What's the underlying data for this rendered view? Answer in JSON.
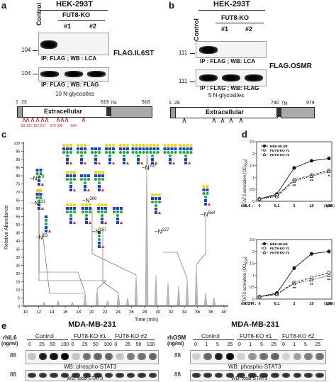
{
  "panel_a": {
    "label": "a",
    "cell_line": "HEK-293T",
    "control": "Control",
    "ko_group": "FUT8-KO",
    "ko1": "#1",
    "ko2": "#2",
    "mw_top": "104",
    "mw_bottom": "104",
    "ip_top": "IP: FLAG ; WB : LCA",
    "ip_bottom": "IP: FLAG ; WB: FLAG",
    "construct": "FLAG.IL6ST",
    "glyco_title": "10 N-glycosites",
    "domain": "Extracellular",
    "pos_start": "1",
    "pos_sp": "23",
    "pos_tm": "619",
    "tm": "TM",
    "pos_end": "918",
    "sites": [
      "83",
      "131",
      "157",
      "227",
      "379",
      "390",
      "564"
    ]
  },
  "panel_b": {
    "label": "b",
    "cell_line": "HEK-293T",
    "control": "Control",
    "ko_group": "FUT8-KO",
    "ko1": "#1",
    "ko2": "#2",
    "mw_top": "111",
    "mw_bottom": "111",
    "ip_top": "IP : FLAG ; WB: LCA",
    "ip_bottom": "IP : FLAG ; WB: FLAG",
    "construct": "FLAG.OSMR",
    "glyco_title": "5 N-glycosites",
    "domain": "Extracellular",
    "pos_start": "1",
    "pos_sp": "28",
    "pos_tm": "740",
    "tm": "TM",
    "pos_end": "979"
  },
  "panel_c": {
    "label": "c",
    "ylabel": "Relative Abundance",
    "xlabel": "Time (min)",
    "y_ticks": [
      "0",
      "5",
      "10",
      "15",
      "20",
      "25",
      "30",
      "35",
      "40",
      "45",
      "50",
      "55",
      "60",
      "65",
      "70",
      "75",
      "80",
      "85",
      "90",
      "95",
      "100"
    ],
    "x_ticks": [
      "10",
      "12",
      "14",
      "16",
      "18",
      "20",
      "22",
      "24",
      "26",
      "28",
      "30",
      "32",
      "34",
      "36",
      "38",
      "40"
    ],
    "glyco_labels": [
      "~N",
      "379",
      "~N",
      "131",
      "~N",
      "83",
      "~N",
      "390",
      "~N",
      "157",
      "~N",
      "227",
      "~N",
      "227",
      "~N",
      "564"
    ]
  },
  "panel_d": {
    "label": "d",
    "ylabel": "STAT3 activation (OD",
    "ylabel_sub": "650",
    "ylabel_end": ")",
    "legend": [
      "HEK-BLUE",
      "FUT8-KO #1",
      "FUT8-KO #2"
    ],
    "top_xlabel": "rhIL6 :",
    "bottom_xlabel": "rhOSM :",
    "x_ticks": [
      "0",
      "0.1",
      "1",
      "10",
      "100"
    ],
    "unit": "(ng/ml)",
    "y_ticks": [
      "0",
      "0.5",
      "1",
      "1.5",
      "2",
      "2.5"
    ],
    "stars_top": [
      "**",
      "**",
      "*"
    ],
    "stars_bottom": [
      "**",
      "**",
      "**"
    ]
  },
  "chart_data": [
    {
      "type": "line",
      "title": "",
      "xlabel": "rhIL6 (ng/ml)",
      "ylabel": "STAT3 activation (OD650)",
      "categories": [
        "0",
        "0.1",
        "1",
        "10",
        "100"
      ],
      "ylim": [
        0,
        2.5
      ],
      "series": [
        {
          "name": "HEK-BLUE",
          "values": [
            0.1,
            0.3,
            1.4,
            1.7,
            1.8
          ]
        },
        {
          "name": "FUT8-KO #1",
          "values": [
            0.1,
            0.25,
            0.9,
            1.1,
            1.3
          ]
        },
        {
          "name": "FUT8-KO #2",
          "values": [
            0.1,
            0.2,
            0.85,
            1.05,
            1.25
          ]
        }
      ]
    },
    {
      "type": "line",
      "title": "",
      "xlabel": "rhOSM (ng/ml)",
      "ylabel": "STAT3 activation (OD650)",
      "categories": [
        "0",
        "0.1",
        "1",
        "10",
        "100"
      ],
      "ylim": [
        0,
        2.5
      ],
      "series": [
        {
          "name": "HEK-BLUE",
          "values": [
            0.1,
            0.25,
            1.3,
            1.9,
            2.0
          ]
        },
        {
          "name": "FUT8-KO #1",
          "values": [
            0.1,
            0.2,
            0.7,
            0.9,
            1.1
          ]
        },
        {
          "name": "FUT8-KO #2",
          "values": [
            0.1,
            0.2,
            0.65,
            0.8,
            1.0
          ]
        }
      ]
    }
  ],
  "panel_e": {
    "label": "e",
    "left_title": "MDA-MB-231",
    "right_title": "MDA-MB-231",
    "left_treat": "rhIL6",
    "left_unit": "(ng/ml)",
    "right_treat": "rhOSM",
    "right_unit": "(ng/ml)",
    "groups": [
      "Control",
      "FUT8-KO #1",
      "FUT8-KO #2"
    ],
    "left_doses": [
      "0",
      "25",
      "50",
      "100",
      "0",
      "25",
      "50",
      "100",
      "0",
      "25",
      "50",
      "100"
    ],
    "right_doses": [
      "0",
      "1",
      "5",
      "25",
      "0",
      "1",
      "5",
      "25",
      "0",
      "1",
      "5",
      "25"
    ],
    "mw_top": "88",
    "mw_bottom": "88",
    "wb_top": "WB: phospho-STAT3",
    "wb_bottom": "WB: total STAT3"
  },
  "colors": {
    "glcnac": "#1f3fbf",
    "mannose": "#1aa84a",
    "galactose": "#f2d400",
    "fucose": "#e02020",
    "sialic": "#8a2be2",
    "site_marker": "#d81e1e"
  }
}
